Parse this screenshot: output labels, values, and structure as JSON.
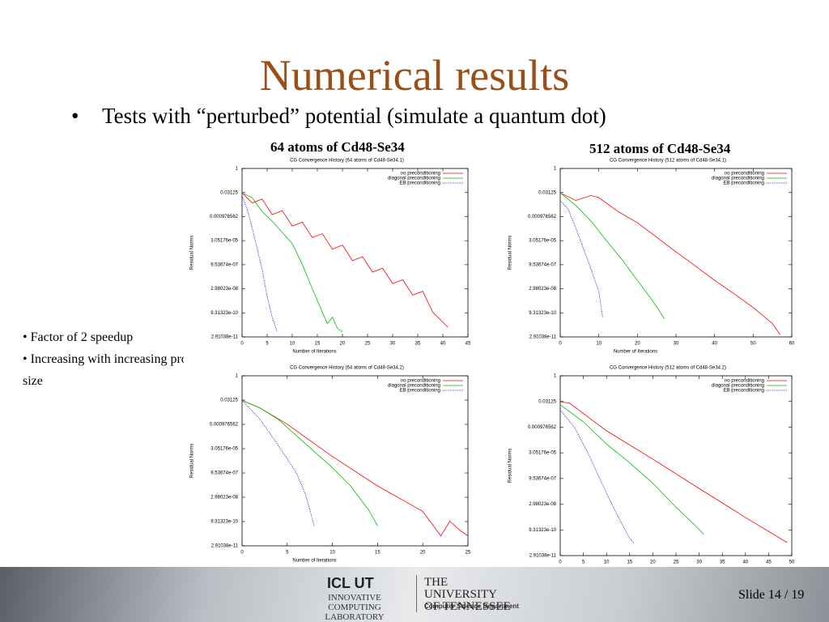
{
  "slide": {
    "title": "Numerical results",
    "bullet": "Tests with “perturbed” potential (simulate a quantum dot)",
    "caption_left": "64 atoms of Cd48-Se34",
    "caption_right": "512 atoms of Cd48-Se34",
    "side_notes": [
      "Factor of 2 speedup",
      "Increasing with increasing problem size"
    ],
    "footer": {
      "logo_left": "ICL UT",
      "lab": "Innovative Computing Laboratory",
      "university": "The University of Tennessee",
      "department": "Computer Science Department",
      "slide_number": "Slide 14 / 19"
    }
  },
  "chart_data": [
    {
      "type": "line",
      "title": "CG Convergence History (64 atoms of Cd48-Se34.1)",
      "xlabel": "Number of Iterations",
      "ylabel": "Residual Norms",
      "ylog": true,
      "legend": "upper right",
      "xlim": [
        0,
        45
      ],
      "xticks": [
        0,
        5,
        10,
        15,
        20,
        25,
        30,
        35,
        40,
        45
      ],
      "ylim": [
        2.9103830456733704e-11,
        1
      ],
      "yticks": [
        1,
        0.03125,
        {
          "value": 0.0009765625,
          "label": "0.000976562"
        },
        {
          "value": 3.0517578125e-05,
          "label": "3.05176e-05"
        },
        {
          "value": 9.5367431640625e-07,
          "label": "9.53674e-07"
        },
        {
          "value": 2.9802322387695312e-08,
          "label": "2.98023e-08"
        },
        {
          "value": 9.313225746154785e-10,
          "label": "9.31323e-10"
        },
        {
          "value": 2.9103830456733704e-11,
          "label": "2.91038e-11"
        }
      ],
      "series": [
        {
          "name": "no preconditioning",
          "color": "#ff0000",
          "dash": false,
          "x": [
            0,
            2,
            4,
            6,
            8,
            10,
            12,
            14,
            16,
            18,
            20,
            22,
            24,
            26,
            28,
            30,
            32,
            34,
            36,
            38,
            41
          ],
          "values": [
            0.03,
            0.007,
            0.012,
            0.0013,
            0.0023,
            0.00025,
            0.00044,
            4.8e-05,
            8.3e-05,
            9e-06,
            1.6e-05,
            1.7e-06,
            3e-06,
            3.3e-07,
            5.8e-07,
            6.3e-08,
            1.1e-07,
            1.2e-08,
            2.1e-08,
            1e-09,
            1.2e-10
          ]
        },
        {
          "name": "diagonal preconditioning",
          "color": "#00c000",
          "dash": false,
          "x": [
            0,
            2,
            4,
            6,
            8,
            10,
            12,
            14,
            16,
            17,
            18,
            19,
            20
          ],
          "values": [
            0.03,
            0.015,
            0.002,
            0.0005,
            0.0001,
            2e-05,
            1e-06,
            3e-08,
            1e-09,
            2e-10,
            5e-10,
            1e-10,
            6e-11
          ]
        },
        {
          "name": "EB preconditioning",
          "color": "#0000e0",
          "dash": true,
          "x": [
            0,
            1,
            2,
            3,
            4,
            5,
            6,
            7
          ],
          "values": [
            0.02,
            0.003,
            0.0002,
            1e-05,
            5e-07,
            1e-08,
            5e-10,
            6e-11
          ]
        }
      ]
    },
    {
      "type": "line",
      "title": "CG Convergence History (512 atoms of Cd48-Se34.1)",
      "xlabel": "Number of Iterations",
      "ylabel": "Residual Norms",
      "ylog": true,
      "legend": "upper right",
      "xlim": [
        0,
        60
      ],
      "xticks": [
        0,
        10,
        20,
        30,
        40,
        50,
        60
      ],
      "ylim": [
        2.9103830456733704e-11,
        1
      ],
      "yticks": [
        1,
        0.03125,
        {
          "value": 0.0009765625,
          "label": "0.000976562"
        },
        {
          "value": 3.0517578125e-05,
          "label": "3.05176e-05"
        },
        {
          "value": 9.5367431640625e-07,
          "label": "9.53674e-07"
        },
        {
          "value": 2.9802322387695312e-08,
          "label": "2.98023e-08"
        },
        {
          "value": 9.313225746154785e-10,
          "label": "9.31323e-10"
        },
        {
          "value": 2.9103830456733704e-11,
          "label": "2.91038e-11"
        }
      ],
      "series": [
        {
          "name": "no preconditioning",
          "color": "#ff0000",
          "dash": false,
          "x": [
            0,
            4,
            8,
            10,
            15,
            20,
            25,
            30,
            35,
            40,
            45,
            50,
            55,
            57
          ],
          "values": [
            0.03,
            0.01,
            0.02,
            0.015,
            0.002,
            0.0004,
            5e-05,
            6e-06,
            8e-07,
            1e-07,
            1.5e-08,
            2e-09,
            2e-10,
            4e-11
          ]
        },
        {
          "name": "diagonal preconditioning",
          "color": "#00c000",
          "dash": false,
          "x": [
            0,
            4,
            8,
            12,
            16,
            20,
            24,
            27
          ],
          "values": [
            0.03,
            0.005,
            0.0005,
            3e-05,
            2e-06,
            1e-07,
            5e-09,
            4e-10
          ]
        },
        {
          "name": "EB preconditioning",
          "color": "#0000e0",
          "dash": true,
          "x": [
            0,
            2,
            4,
            6,
            8,
            10,
            11
          ],
          "values": [
            0.01,
            0.003,
            0.0002,
            1e-05,
            5e-07,
            2e-08,
            5e-10
          ]
        }
      ]
    },
    {
      "type": "line",
      "title": "CG Convergence History (64 atoms of Cd48-Se34.2)",
      "xlabel": "Number of Iterations",
      "ylabel": "Residual Norms",
      "ylog": true,
      "legend": "upper right",
      "xlim": [
        0,
        25
      ],
      "xticks": [
        0,
        5,
        10,
        15,
        20,
        25
      ],
      "ylim": [
        2.9103830456733704e-11,
        1
      ],
      "yticks": [
        1,
        0.03125,
        {
          "value": 0.0009765625,
          "label": "0.000976562"
        },
        {
          "value": 3.0517578125e-05,
          "label": "3.05176e-05"
        },
        {
          "value": 9.5367431640625e-07,
          "label": "9.53674e-07"
        },
        {
          "value": 2.9802322387695312e-08,
          "label": "2.98023e-08"
        },
        {
          "value": 9.313225746154785e-10,
          "label": "9.31323e-10"
        },
        {
          "value": 2.9103830456733704e-11,
          "label": "2.91038e-11"
        }
      ],
      "series": [
        {
          "name": "no preconditioning",
          "color": "#ff0000",
          "dash": false,
          "x": [
            0,
            2,
            5,
            10,
            15,
            20,
            22,
            23,
            24,
            25
          ],
          "values": [
            0.03,
            0.01,
            0.001,
            1e-05,
            1.5e-07,
            4e-09,
            1.2e-10,
            1e-09,
            3e-10,
            1.2e-10
          ]
        },
        {
          "name": "diagonal preconditioning",
          "color": "#00c000",
          "dash": false,
          "x": [
            0,
            2,
            4,
            6,
            8,
            10,
            12,
            14,
            15
          ],
          "values": [
            0.03,
            0.01,
            0.002,
            0.0002,
            2e-05,
            2e-06,
            1.5e-07,
            5e-09,
            5e-10
          ]
        },
        {
          "name": "EB preconditioning",
          "color": "#0000e0",
          "dash": true,
          "x": [
            0,
            2,
            4,
            6,
            7,
            8
          ],
          "values": [
            0.03,
            0.002,
            5e-05,
            1e-06,
            5e-08,
            5e-10
          ]
        }
      ]
    },
    {
      "type": "line",
      "title": "CG Convergence History (512 atoms of Cd48-Se34.2)",
      "xlabel": "Number of Iterations",
      "ylabel": "Residual Norms",
      "ylog": true,
      "legend": "upper right",
      "xlim": [
        0,
        50
      ],
      "xticks": [
        0,
        5,
        10,
        15,
        20,
        25,
        30,
        35,
        40,
        45,
        50
      ],
      "ylim": [
        2.9103830456733704e-11,
        1
      ],
      "yticks": [
        1,
        0.03125,
        {
          "value": 0.0009765625,
          "label": "0.000976562"
        },
        {
          "value": 3.0517578125e-05,
          "label": "3.05176e-05"
        },
        {
          "value": 9.5367431640625e-07,
          "label": "9.53674e-07"
        },
        {
          "value": 2.9802322387695312e-08,
          "label": "2.98023e-08"
        },
        {
          "value": 9.313225746154785e-10,
          "label": "9.31323e-10"
        },
        {
          "value": 2.9103830456733704e-11,
          "label": "2.91038e-11"
        }
      ],
      "series": [
        {
          "name": "no preconditioning",
          "color": "#ff0000",
          "dash": false,
          "x": [
            0,
            2,
            10,
            20,
            30,
            40,
            49
          ],
          "values": [
            0.03,
            0.025,
            0.0006,
            1.3e-05,
            2.5e-07,
            5e-09,
            1.7e-10
          ]
        },
        {
          "name": "diagonal preconditioning",
          "color": "#00c000",
          "dash": false,
          "x": [
            0,
            5,
            10,
            15,
            20,
            25,
            30,
            31
          ],
          "values": [
            0.02,
            0.002,
            0.0001,
            8e-06,
            5e-07,
            2e-08,
            1e-09,
            5e-10
          ]
        },
        {
          "name": "EB preconditioning",
          "color": "#0000e0",
          "dash": true,
          "x": [
            0,
            3,
            6,
            9,
            12,
            15,
            16
          ],
          "values": [
            0.01,
            0.001,
            3e-05,
            5e-07,
            1e-08,
            3e-10,
            1.5e-10
          ]
        }
      ]
    }
  ]
}
